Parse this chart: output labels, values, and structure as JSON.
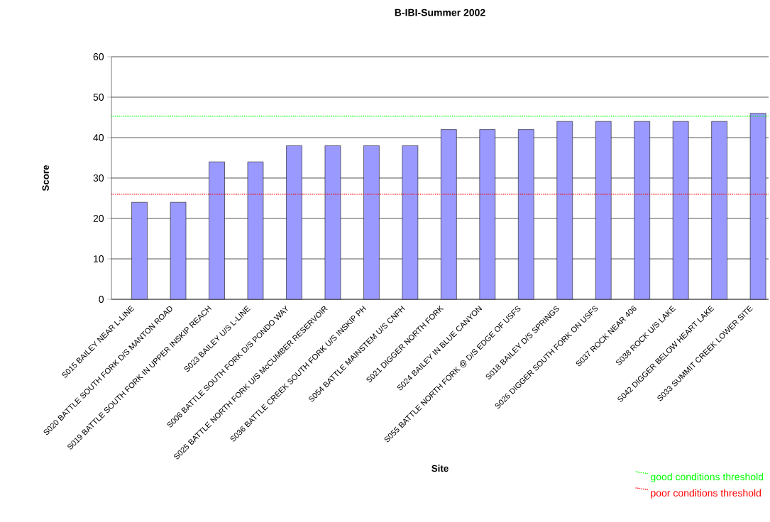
{
  "chart_data": {
    "type": "bar",
    "title": "B-IBI-Summer 2002",
    "xlabel": "Site",
    "ylabel": "Score",
    "categories": [
      "S015 BAILEY NEAR L-LINE",
      "S020 BATTLE SOUTH FORK D/S MANTON ROAD",
      "S019 BATTLE SOUTH FORK IN UPPER INSKIP REACH",
      "S023 BAILEY U/S L-LINE",
      "S006 BATTLE SOUTH FORK D/S PONDO WAY",
      "S025 BATTLE NORTH FORK U/S McCUMBER RESERVOIR",
      "S036 BATTLE CREEK SOUTH FORK U/S INSKIP PH",
      "S054 BATTLE MAINSTEM U/S CNFH",
      "S021 DIGGER NORTH FORK",
      "S024 BAILEY IN BLUE CANYON",
      "S055 BATTLE NORTH FORK @ D/S EDGE OF USFS",
      "S018 BAILEY D/S SPRINGS",
      "S026 DIGGER SOUTH FORK ON USFS",
      "S037 ROCK NEAR 406",
      "S038 ROCK U/S LAKE",
      "S042 DIGGER BELOW HEART LAKE",
      "S033 SUMMIT CREEK LOWER SITE"
    ],
    "values": [
      24,
      24,
      34,
      34,
      38,
      38,
      38,
      38,
      42,
      42,
      42,
      44,
      44,
      44,
      44,
      44,
      46
    ],
    "color": "#9999ff",
    "ylim": [
      0,
      60
    ],
    "yticks": [
      0,
      10,
      20,
      30,
      40,
      50,
      60
    ],
    "grid": "y",
    "ref_lines": [
      {
        "axis": "y",
        "value": 45.3,
        "label": "good conditions threshold",
        "color": "#00ff00",
        "line_style": "dotted"
      },
      {
        "axis": "y",
        "value": 26,
        "label": "poor conditions threshold",
        "color": "#ff0000",
        "line_style": "dotted"
      }
    ],
    "legend": "bottom right"
  }
}
